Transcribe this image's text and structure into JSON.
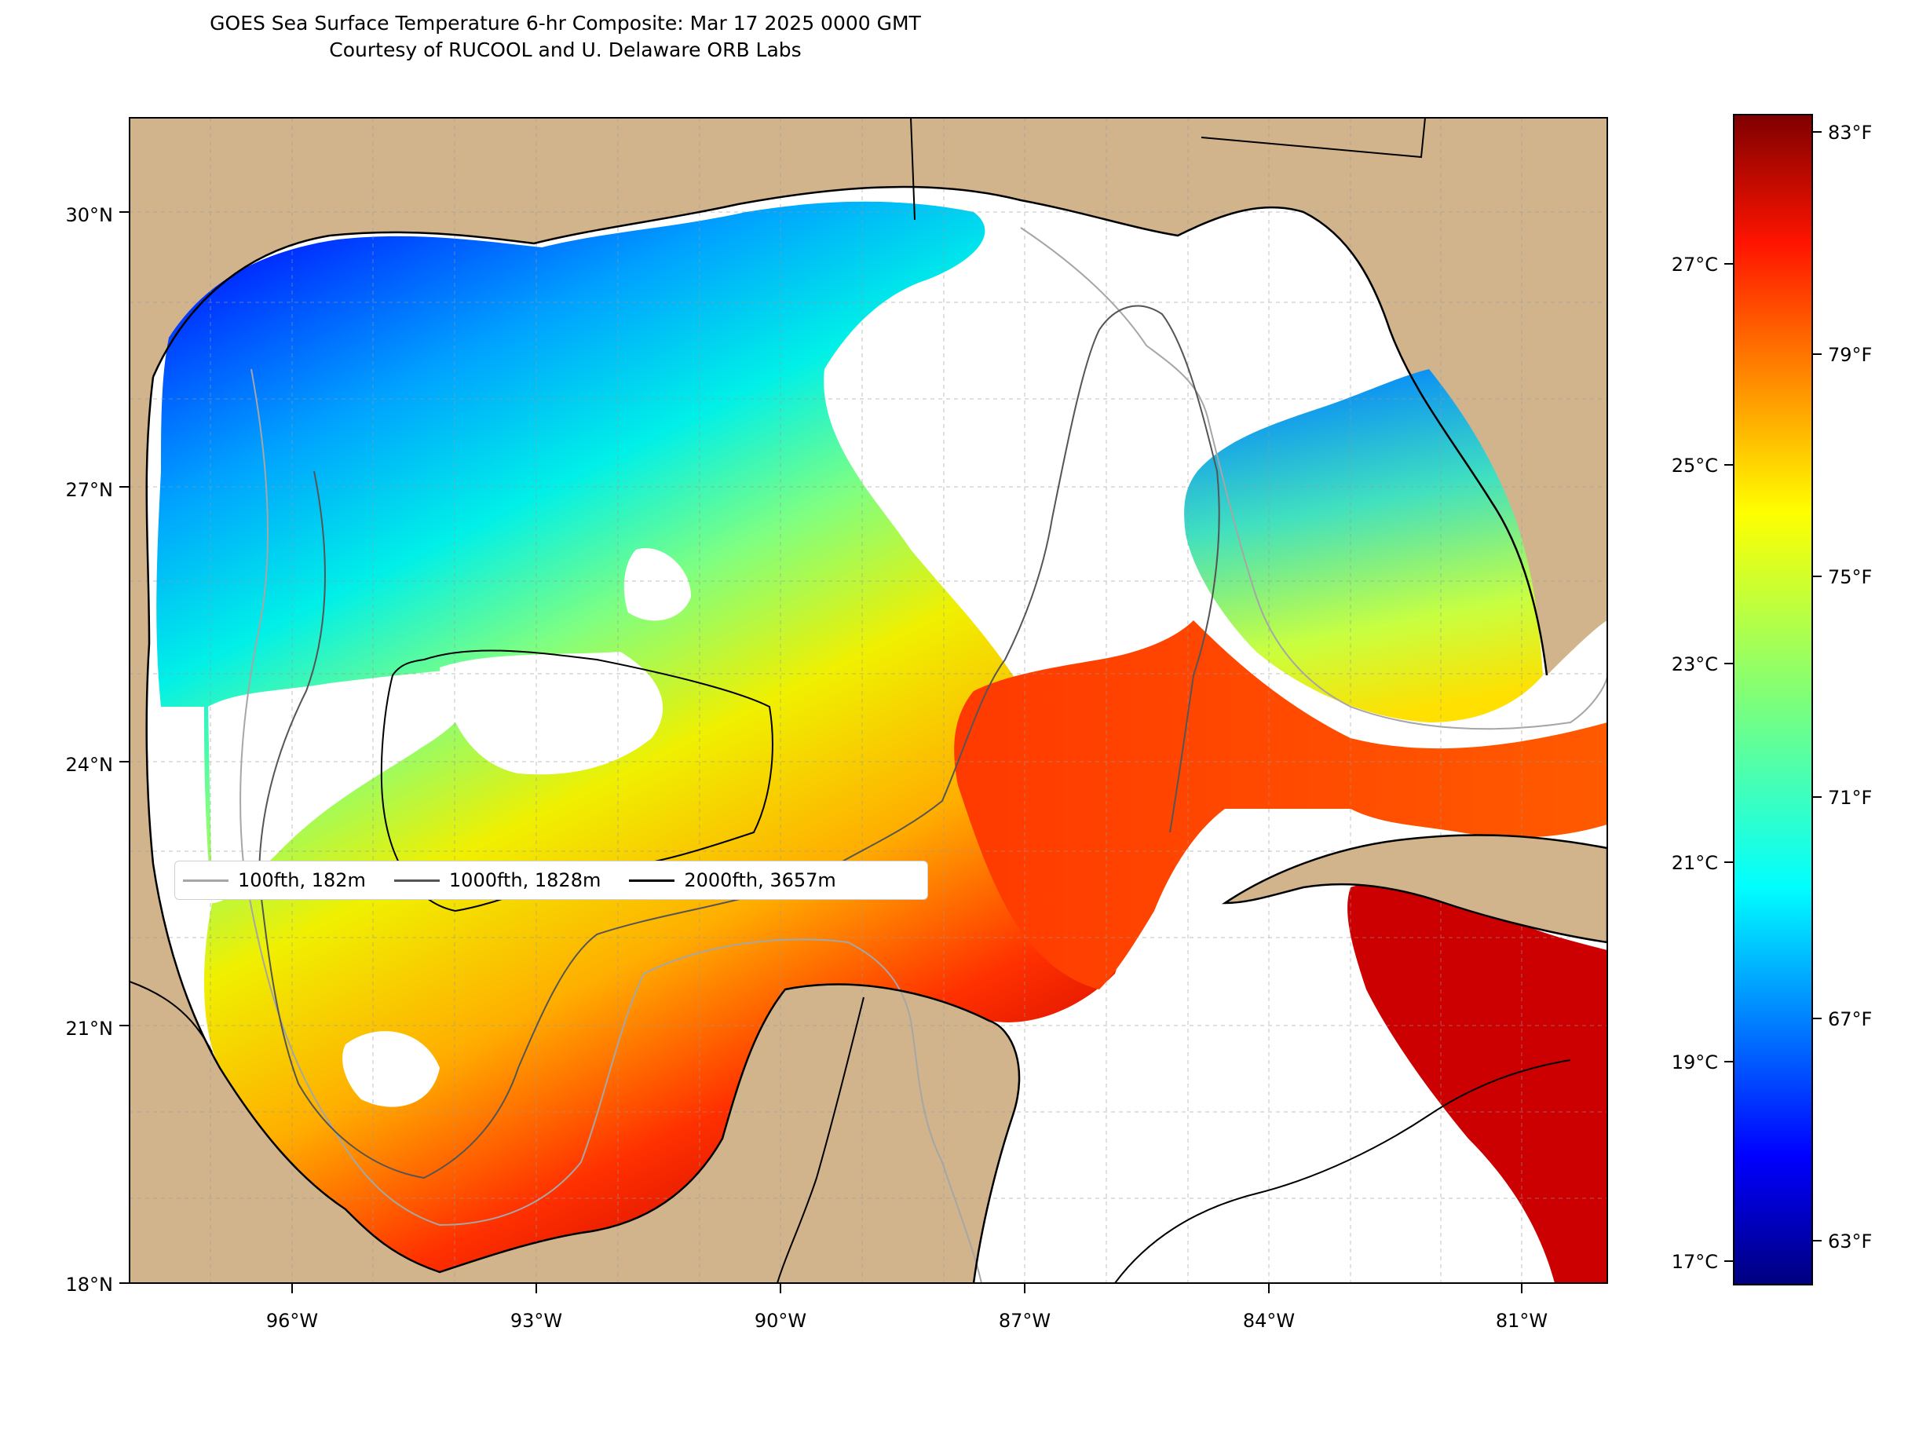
{
  "title": {
    "line1": "GOES Sea Surface Temperature 6-hr Composite: Mar 17 2025 0000 GMT",
    "line2": "Courtesy of RUCOOL and U. Delaware ORB Labs"
  },
  "map": {
    "extent": {
      "lon_min": -98,
      "lon_max": -80,
      "lat_min": 18,
      "lat_max": 31
    },
    "lat_ticks": [
      "30°N",
      "27°N",
      "24°N",
      "21°N",
      "18°N"
    ],
    "lon_ticks": [
      "96°W",
      "93°W",
      "90°W",
      "87°W",
      "84°W",
      "81°W"
    ],
    "gridlines": true,
    "land_color": "#d2b48c",
    "no_data_color": "#ffffff"
  },
  "colorbar": {
    "colormap": "jet",
    "fahrenheit_labels": [
      "83°F",
      "79°F",
      "75°F",
      "71°F",
      "67°F",
      "63°F"
    ],
    "celsius_labels": [
      "27°C",
      "25°C",
      "23°C",
      "21°C",
      "19°C",
      "17°C"
    ]
  },
  "legend": {
    "items": [
      {
        "label": "100fth, 182m",
        "color": "#a6a6a6"
      },
      {
        "label": "1000fth, 1828m",
        "color": "#555555"
      },
      {
        "label": "2000fth, 3657m",
        "color": "#000000"
      }
    ]
  }
}
